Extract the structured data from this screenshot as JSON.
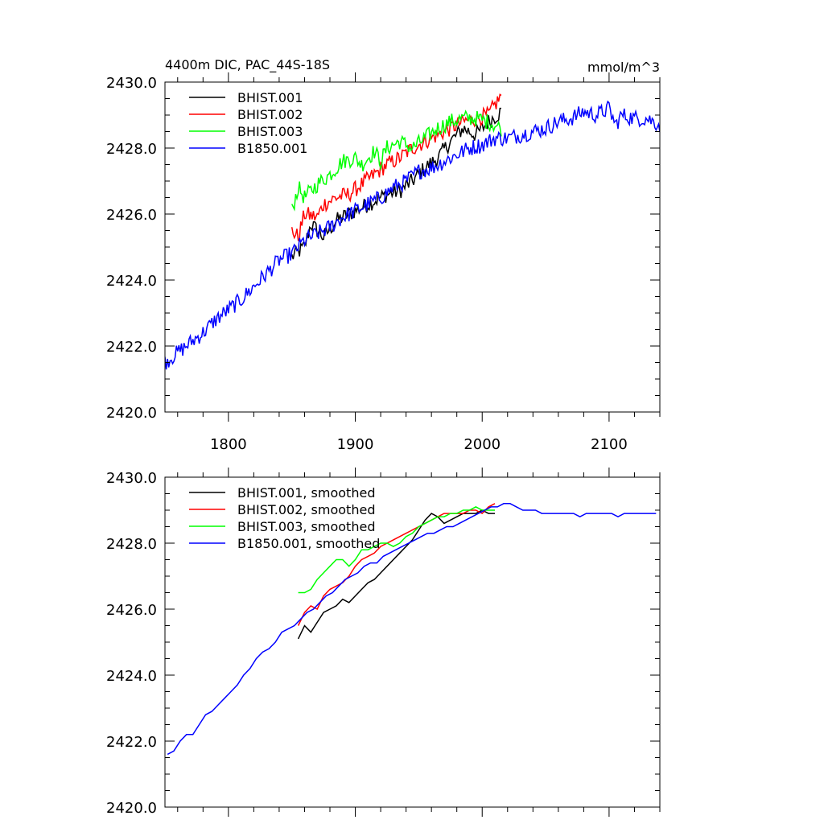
{
  "chart_data": [
    {
      "type": "line",
      "title": "4400m DIC, PAC_44S-18S",
      "units": "mmol/m^3",
      "xlabel": "",
      "ylabel": "",
      "xlim": [
        1750,
        2140
      ],
      "ylim": [
        2420.0,
        2430.0
      ],
      "yticks": [
        "2420.0",
        "2422.0",
        "2424.0",
        "2426.0",
        "2428.0",
        "2430.0"
      ],
      "xticks": [
        "1800",
        "1900",
        "2000",
        "2100"
      ],
      "legend_position": "top-left",
      "series": [
        {
          "name": "BHIST.001",
          "color": "#000000",
          "x0": 1850,
          "x1": 2015,
          "step": 1,
          "anchors": [
            [
              1850,
              2424.7
            ],
            [
              1860,
              2425.0
            ],
            [
              1865,
              2425.7
            ],
            [
              1875,
              2425.3
            ],
            [
              1885,
              2425.8
            ],
            [
              1895,
              2426.0
            ],
            [
              1905,
              2426.2
            ],
            [
              1915,
              2426.4
            ],
            [
              1925,
              2426.6
            ],
            [
              1935,
              2426.7
            ],
            [
              1945,
              2427.0
            ],
            [
              1955,
              2427.4
            ],
            [
              1965,
              2427.7
            ],
            [
              1975,
              2428.2
            ],
            [
              1985,
              2428.6
            ],
            [
              1995,
              2428.4
            ],
            [
              2005,
              2428.8
            ],
            [
              2015,
              2429.1
            ]
          ]
        },
        {
          "name": "BHIST.002",
          "color": "#ff0000",
          "x0": 1850,
          "x1": 2015,
          "step": 1,
          "anchors": [
            [
              1850,
              2425.5
            ],
            [
              1855,
              2425.3
            ],
            [
              1860,
              2426.0
            ],
            [
              1870,
              2425.9
            ],
            [
              1875,
              2426.3
            ],
            [
              1885,
              2426.5
            ],
            [
              1895,
              2426.6
            ],
            [
              1905,
              2426.9
            ],
            [
              1915,
              2427.2
            ],
            [
              1925,
              2427.5
            ],
            [
              1935,
              2427.7
            ],
            [
              1945,
              2428.0
            ],
            [
              1955,
              2428.2
            ],
            [
              1965,
              2428.4
            ],
            [
              1975,
              2428.6
            ],
            [
              1985,
              2428.8
            ],
            [
              1995,
              2428.9
            ],
            [
              2005,
              2429.0
            ],
            [
              2015,
              2429.6
            ]
          ]
        },
        {
          "name": "BHIST.003",
          "color": "#00ff00",
          "x0": 1850,
          "x1": 2015,
          "step": 1,
          "anchors": [
            [
              1850,
              2426.1
            ],
            [
              1855,
              2426.8
            ],
            [
              1860,
              2426.5
            ],
            [
              1870,
              2426.9
            ],
            [
              1880,
              2427.2
            ],
            [
              1890,
              2427.6
            ],
            [
              1900,
              2427.7
            ],
            [
              1905,
              2427.5
            ],
            [
              1915,
              2427.9
            ],
            [
              1920,
              2427.6
            ],
            [
              1925,
              2428.0
            ],
            [
              1935,
              2428.2
            ],
            [
              1945,
              2428.0
            ],
            [
              1955,
              2428.3
            ],
            [
              1965,
              2428.6
            ],
            [
              1975,
              2428.8
            ],
            [
              1985,
              2428.9
            ],
            [
              1995,
              2428.9
            ],
            [
              2005,
              2428.8
            ],
            [
              2015,
              2428.6
            ]
          ]
        },
        {
          "name": "B1850.001",
          "color": "#0000ff",
          "x0": 1750,
          "x1": 2140,
          "step": 1,
          "anchors": [
            [
              1750,
              2421.5
            ],
            [
              1760,
              2421.8
            ],
            [
              1770,
              2422.1
            ],
            [
              1780,
              2422.4
            ],
            [
              1790,
              2422.8
            ],
            [
              1800,
              2423.1
            ],
            [
              1810,
              2423.4
            ],
            [
              1820,
              2423.8
            ],
            [
              1830,
              2424.2
            ],
            [
              1840,
              2424.6
            ],
            [
              1850,
              2424.8
            ],
            [
              1860,
              2425.2
            ],
            [
              1870,
              2425.4
            ],
            [
              1880,
              2425.6
            ],
            [
              1890,
              2425.9
            ],
            [
              1900,
              2426.1
            ],
            [
              1910,
              2426.3
            ],
            [
              1920,
              2426.5
            ],
            [
              1930,
              2426.8
            ],
            [
              1940,
              2427.0
            ],
            [
              1950,
              2427.3
            ],
            [
              1960,
              2427.4
            ],
            [
              1970,
              2427.6
            ],
            [
              1980,
              2427.8
            ],
            [
              1990,
              2428.0
            ],
            [
              2000,
              2428.1
            ],
            [
              2010,
              2428.3
            ],
            [
              2020,
              2428.3
            ],
            [
              2030,
              2428.4
            ],
            [
              2040,
              2428.5
            ],
            [
              2050,
              2428.6
            ],
            [
              2060,
              2428.8
            ],
            [
              2070,
              2428.9
            ],
            [
              2080,
              2429.1
            ],
            [
              2090,
              2429.0
            ],
            [
              2100,
              2429.2
            ],
            [
              2105,
              2428.7
            ],
            [
              2110,
              2429.0
            ],
            [
              2120,
              2428.9
            ],
            [
              2130,
              2428.9
            ],
            [
              2140,
              2428.7
            ]
          ]
        }
      ]
    },
    {
      "type": "line",
      "title": "",
      "xlabel": "",
      "ylabel": "",
      "xlim": [
        1750,
        2140
      ],
      "ylim": [
        2420.0,
        2430.0
      ],
      "yticks": [
        "2420.0",
        "2422.0",
        "2424.0",
        "2426.0",
        "2428.0",
        "2430.0"
      ],
      "xticks": [],
      "legend_position": "top-left",
      "series": [
        {
          "name": "BHIST.001, smoothed",
          "color": "#000000",
          "x0": 1855,
          "x1": 2010,
          "step": 5,
          "values": [
            2425.1,
            2425.5,
            2425.3,
            2425.6,
            2425.9,
            2426.0,
            2426.1,
            2426.3,
            2426.2,
            2426.4,
            2426.6,
            2426.8,
            2426.9,
            2427.1,
            2427.3,
            2427.5,
            2427.7,
            2427.9,
            2428.1,
            2428.4,
            2428.7,
            2428.9,
            2428.8,
            2428.6,
            2428.7,
            2428.8,
            2428.9,
            2428.9,
            2428.9,
            2429.0,
            2428.9,
            2428.9
          ]
        },
        {
          "name": "BHIST.002, smoothed",
          "color": "#ff0000",
          "x0": 1855,
          "x1": 2010,
          "step": 5,
          "values": [
            2425.5,
            2425.9,
            2426.1,
            2426.0,
            2426.4,
            2426.6,
            2426.7,
            2426.8,
            2427.0,
            2427.3,
            2427.5,
            2427.6,
            2427.7,
            2427.9,
            2428.0,
            2428.1,
            2428.2,
            2428.3,
            2428.4,
            2428.5,
            2428.6,
            2428.7,
            2428.8,
            2428.9,
            2428.9,
            2428.9,
            2428.9,
            2429.0,
            2429.0,
            2428.9,
            2429.1,
            2429.2
          ]
        },
        {
          "name": "BHIST.003, smoothed",
          "color": "#00ff00",
          "x0": 1855,
          "x1": 2010,
          "step": 5,
          "values": [
            2426.5,
            2426.5,
            2426.6,
            2426.9,
            2427.1,
            2427.3,
            2427.5,
            2427.5,
            2427.3,
            2427.5,
            2427.8,
            2427.8,
            2427.9,
            2428.0,
            2428.0,
            2427.9,
            2428.0,
            2428.2,
            2428.3,
            2428.5,
            2428.6,
            2428.7,
            2428.8,
            2428.8,
            2428.9,
            2428.9,
            2429.0,
            2429.0,
            2429.1,
            2429.0,
            2429.0,
            2429.0
          ]
        },
        {
          "name": "B1850.001, smoothed",
          "color": "#0000ff",
          "x0": 1752,
          "x1": 2137,
          "step": 5,
          "values": [
            2421.6,
            2421.7,
            2422.0,
            2422.2,
            2422.2,
            2422.5,
            2422.8,
            2422.9,
            2423.1,
            2423.3,
            2423.5,
            2423.7,
            2424.0,
            2424.2,
            2424.5,
            2424.7,
            2424.8,
            2425.0,
            2425.3,
            2425.4,
            2425.5,
            2425.7,
            2425.9,
            2426.0,
            2426.2,
            2426.4,
            2426.5,
            2426.7,
            2426.9,
            2427.0,
            2427.1,
            2427.3,
            2427.4,
            2427.4,
            2427.6,
            2427.7,
            2427.8,
            2427.9,
            2428.0,
            2428.1,
            2428.2,
            2428.3,
            2428.3,
            2428.4,
            2428.5,
            2428.5,
            2428.6,
            2428.7,
            2428.8,
            2428.9,
            2429.0,
            2429.1,
            2429.1,
            2429.2,
            2429.2,
            2429.1,
            2429.0,
            2429.0,
            2429.0,
            2428.9,
            2428.9,
            2428.9,
            2428.9,
            2428.9,
            2428.9,
            2428.8,
            2428.9,
            2428.9,
            2428.9,
            2428.9,
            2428.9,
            2428.8,
            2428.9,
            2428.9,
            2428.9,
            2428.9,
            2428.9,
            2428.9
          ]
        }
      ]
    }
  ]
}
